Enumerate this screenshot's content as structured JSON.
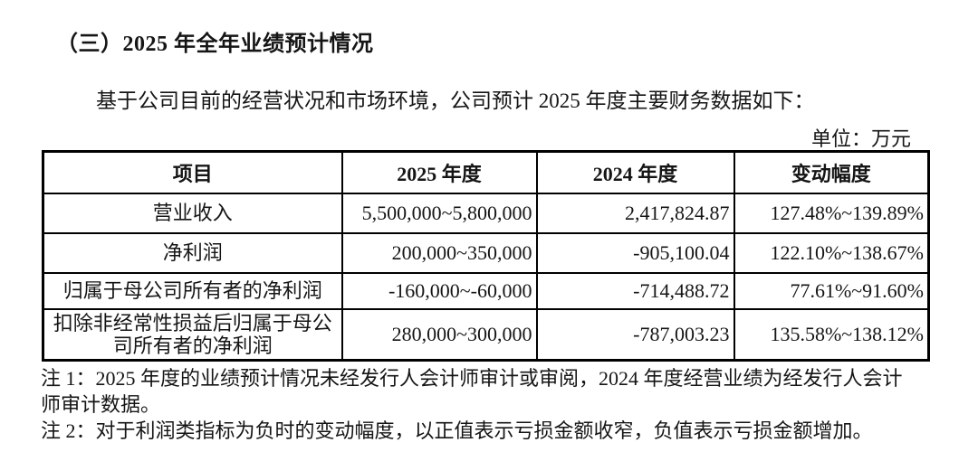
{
  "page": {
    "heading": "（三）2025 年全年业绩预计情况",
    "intro": "基于公司目前的经营状况和市场环境，公司预计 2025 年度主要财务数据如下：",
    "unit_label": "单位：万元"
  },
  "table": {
    "headers": [
      "项目",
      "2025 年度",
      "2024 年度",
      "变动幅度"
    ],
    "rows": [
      {
        "item": "营业收入",
        "y2025": "5,500,000~5,800,000",
        "y2024": "2,417,824.87",
        "change": "127.48%~139.89%"
      },
      {
        "item": "净利润",
        "y2025": "200,000~350,000",
        "y2024": "-905,100.04",
        "change": "122.10%~138.67%"
      },
      {
        "item": "归属于母公司所有者的净利润",
        "y2025": "-160,000~-60,000",
        "y2024": "-714,488.72",
        "change": "77.61%~91.60%"
      },
      {
        "item": "扣除非经常性损益后归属于母公司所有者的净利润",
        "y2025": "280,000~300,000",
        "y2024": "-787,003.23",
        "change": "135.58%~138.12%"
      }
    ]
  },
  "notes": {
    "note1_lines": [
      "注 1：2025 年度的业绩预计情况未经发行人会计师审计或审阅，2024 年度经营业绩为经发行人会计",
      "师审计数据。"
    ],
    "note2": "注 2：对于利润类指标为负时的变动幅度，以正值表示亏损金额收窄，负值表示亏损金额增加。"
  },
  "colors": {
    "text": "#151515",
    "border": "#000000",
    "background": "#ffffff"
  }
}
